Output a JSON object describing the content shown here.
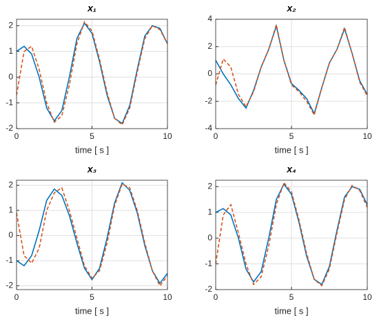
{
  "chart_data": [
    {
      "type": "line",
      "title": "x₁",
      "xlabel": "time [ s ]",
      "x": [
        0,
        0.5,
        1,
        1.5,
        2,
        2.5,
        3,
        3.5,
        4,
        4.5,
        5,
        5.5,
        6,
        6.5,
        7,
        7.5,
        8,
        8.5,
        9,
        9.5,
        10
      ],
      "series": [
        {
          "color": "#0072bd",
          "line_style": "solid",
          "values": [
            1.0,
            1.2,
            0.9,
            0.0,
            -1.2,
            -1.7,
            -1.3,
            0.0,
            1.5,
            2.1,
            1.7,
            0.6,
            -0.7,
            -1.6,
            -1.8,
            -1.1,
            0.3,
            1.6,
            2.0,
            1.9,
            1.3
          ]
        },
        {
          "color": "#d95319",
          "line_style": "dashed",
          "values": [
            -0.7,
            1.0,
            1.2,
            0.3,
            -1.0,
            -1.75,
            -1.5,
            -0.3,
            1.3,
            2.15,
            1.8,
            0.7,
            -0.6,
            -1.6,
            -1.85,
            -1.2,
            0.2,
            1.5,
            2.0,
            1.85,
            1.3
          ]
        }
      ],
      "xlim": [
        0,
        10
      ],
      "xticks": [
        0,
        5,
        10
      ],
      "ylim": [
        -2,
        2.25
      ],
      "yticks": [
        -2,
        -1,
        0,
        1,
        2
      ],
      "grid": true
    },
    {
      "type": "line",
      "title": "x₂",
      "xlabel": "time [ s ]",
      "x": [
        0,
        0.5,
        1,
        1.5,
        2,
        2.5,
        3,
        3.5,
        4,
        4.5,
        5,
        5.5,
        6,
        6.5,
        7,
        7.5,
        8,
        8.5,
        9,
        9.5,
        10
      ],
      "series": [
        {
          "color": "#0072bd",
          "line_style": "solid",
          "values": [
            1.0,
            0.0,
            -0.8,
            -1.8,
            -2.5,
            -1.2,
            0.5,
            1.8,
            3.5,
            1.0,
            -0.7,
            -1.2,
            -1.8,
            -2.9,
            -1.0,
            0.8,
            1.8,
            3.3,
            1.5,
            -0.5,
            -1.5
          ]
        },
        {
          "color": "#d95319",
          "line_style": "dashed",
          "values": [
            -0.8,
            1.1,
            0.5,
            -1.5,
            -2.4,
            -1.3,
            0.5,
            1.8,
            3.6,
            1.0,
            -0.8,
            -1.3,
            -2.0,
            -3.0,
            -1.0,
            0.8,
            1.8,
            3.4,
            1.5,
            -0.6,
            -1.6
          ]
        }
      ],
      "xlim": [
        0,
        10
      ],
      "xticks": [
        0,
        5,
        10
      ],
      "ylim": [
        -4,
        4
      ],
      "yticks": [
        -4,
        -2,
        0,
        2,
        4
      ],
      "grid": true
    },
    {
      "type": "line",
      "title": "x₃",
      "xlabel": "time [ s ]",
      "x": [
        0,
        0.5,
        1,
        1.5,
        2,
        2.5,
        3,
        3.5,
        4,
        4.5,
        5,
        5.5,
        6,
        6.5,
        7,
        7.5,
        8,
        8.5,
        9,
        9.5,
        10
      ],
      "series": [
        {
          "color": "#0072bd",
          "line_style": "solid",
          "values": [
            -1.0,
            -1.2,
            -0.8,
            0.2,
            1.4,
            1.85,
            1.6,
            0.8,
            -0.3,
            -1.3,
            -1.75,
            -1.3,
            -0.1,
            1.3,
            2.1,
            1.8,
            0.9,
            -0.4,
            -1.4,
            -1.9,
            -1.5
          ]
        },
        {
          "color": "#d95319",
          "line_style": "dashed",
          "values": [
            0.9,
            -0.8,
            -1.1,
            -0.5,
            1.0,
            1.7,
            1.9,
            1.0,
            -0.1,
            -1.2,
            -1.7,
            -1.4,
            -0.3,
            1.2,
            2.05,
            1.9,
            1.0,
            -0.3,
            -1.4,
            -2.0,
            -1.6
          ]
        }
      ],
      "xlim": [
        0,
        10
      ],
      "xticks": [
        0,
        5,
        10
      ],
      "ylim": [
        -2.15,
        2.2
      ],
      "yticks": [
        -2,
        -1,
        0,
        1,
        2
      ],
      "grid": true
    },
    {
      "type": "line",
      "title": "x₄",
      "xlabel": "time [ s ]",
      "x": [
        0,
        0.5,
        1,
        1.5,
        2,
        2.5,
        3,
        3.5,
        4,
        4.5,
        5,
        5.5,
        6,
        6.5,
        7,
        7.5,
        8,
        8.5,
        9,
        9.5,
        10
      ],
      "series": [
        {
          "color": "#0072bd",
          "line_style": "solid",
          "values": [
            1.0,
            1.15,
            0.9,
            0.0,
            -1.2,
            -1.7,
            -1.3,
            0.0,
            1.5,
            2.1,
            1.7,
            0.6,
            -0.7,
            -1.6,
            -1.8,
            -1.1,
            0.3,
            1.6,
            2.0,
            1.9,
            1.3
          ]
        },
        {
          "color": "#d95319",
          "line_style": "dashed",
          "values": [
            -1.0,
            0.9,
            1.3,
            0.2,
            -1.0,
            -1.8,
            -1.5,
            -0.3,
            1.3,
            2.15,
            1.8,
            0.7,
            -0.6,
            -1.6,
            -1.85,
            -1.2,
            0.2,
            1.5,
            2.05,
            1.85,
            1.2
          ]
        }
      ],
      "xlim": [
        0,
        10
      ],
      "xticks": [
        0,
        5,
        10
      ],
      "ylim": [
        -2,
        2.25
      ],
      "yticks": [
        -2,
        -1,
        0,
        1,
        2
      ],
      "grid": true
    }
  ]
}
